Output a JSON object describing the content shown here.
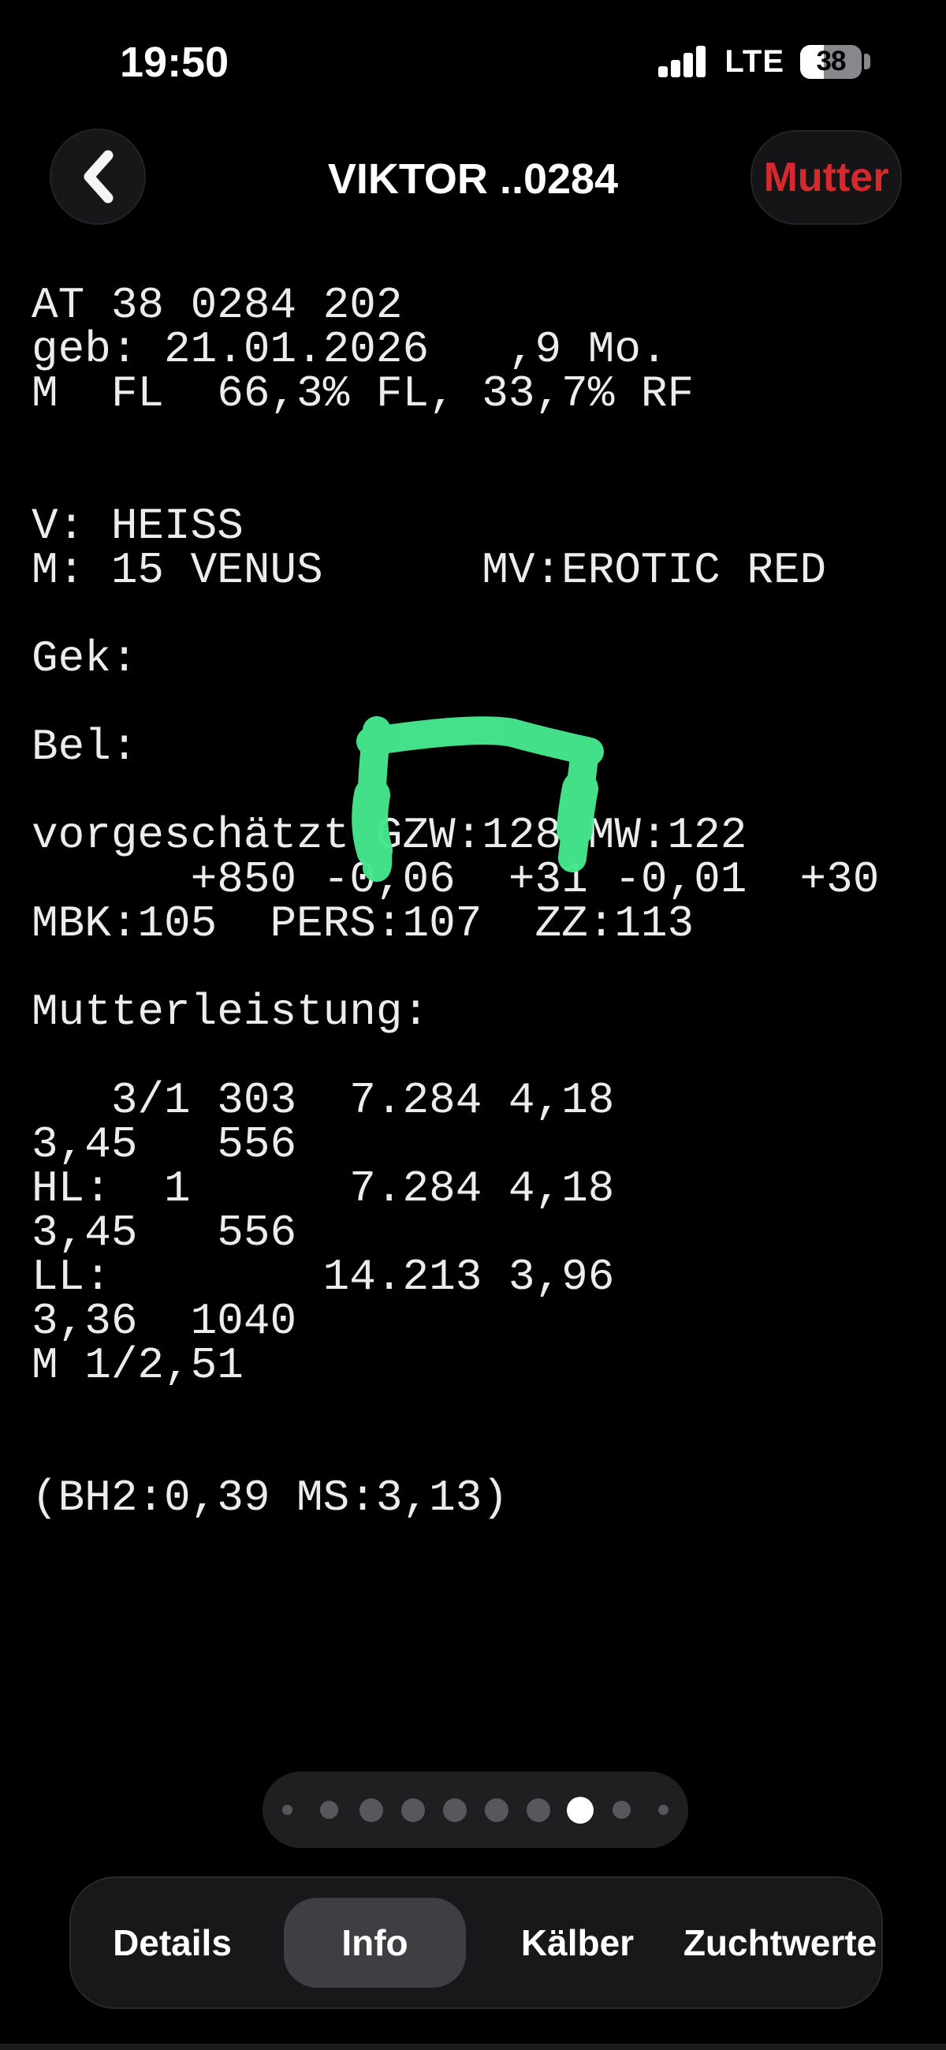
{
  "status_bar": {
    "time": "19:50",
    "network": "LTE",
    "battery_percent": "38"
  },
  "header": {
    "title": "VIKTOR ..0284",
    "action_label": "Mutter"
  },
  "record": {
    "lines": [
      "AT 38 0284 202",
      "geb: 21.01.2026   ,9 Mo.",
      "M  FL  66,3% FL, 33,7% RF",
      "",
      "",
      "V: HEISS",
      "M: 15 VENUS      MV:EROTIC RED",
      "",
      "Gek:",
      "",
      "Bel:",
      "",
      "vorgeschätzt GZW:128 MW:122",
      "      +850 -0,06  +31 -0,01  +30",
      "MBK:105  PERS:107  ZZ:113",
      "",
      "Mutterleistung:",
      "",
      "   3/1 303  7.284 4,18",
      "3,45   556",
      "HL:  1      7.284 4,18",
      "3,45   556",
      "LL:        14.213 3,96",
      "3,36  1040",
      "M 1/2,51",
      "",
      "",
      "(BH2:0,39 MS:3,13)"
    ]
  },
  "annotation": {
    "description": "hand-drawn green marker bracket highlighting GZW:128",
    "color": "#46E78E"
  },
  "page_indicator": {
    "total": 10,
    "active_index": 7,
    "dot_sizes": [
      "xs",
      "sm",
      "md",
      "md",
      "md",
      "md",
      "md",
      "md",
      "sm",
      "xs"
    ]
  },
  "tab_bar": {
    "items": [
      {
        "label": "Details",
        "selected": false
      },
      {
        "label": "Info",
        "selected": true
      },
      {
        "label": "Kälber",
        "selected": false
      },
      {
        "label": "Zuchtwerte",
        "selected": false
      }
    ]
  },
  "colors": {
    "background": "#000000",
    "text": "#ececec",
    "accent_red": "#d7292d",
    "annotation_green": "#46E78E"
  }
}
